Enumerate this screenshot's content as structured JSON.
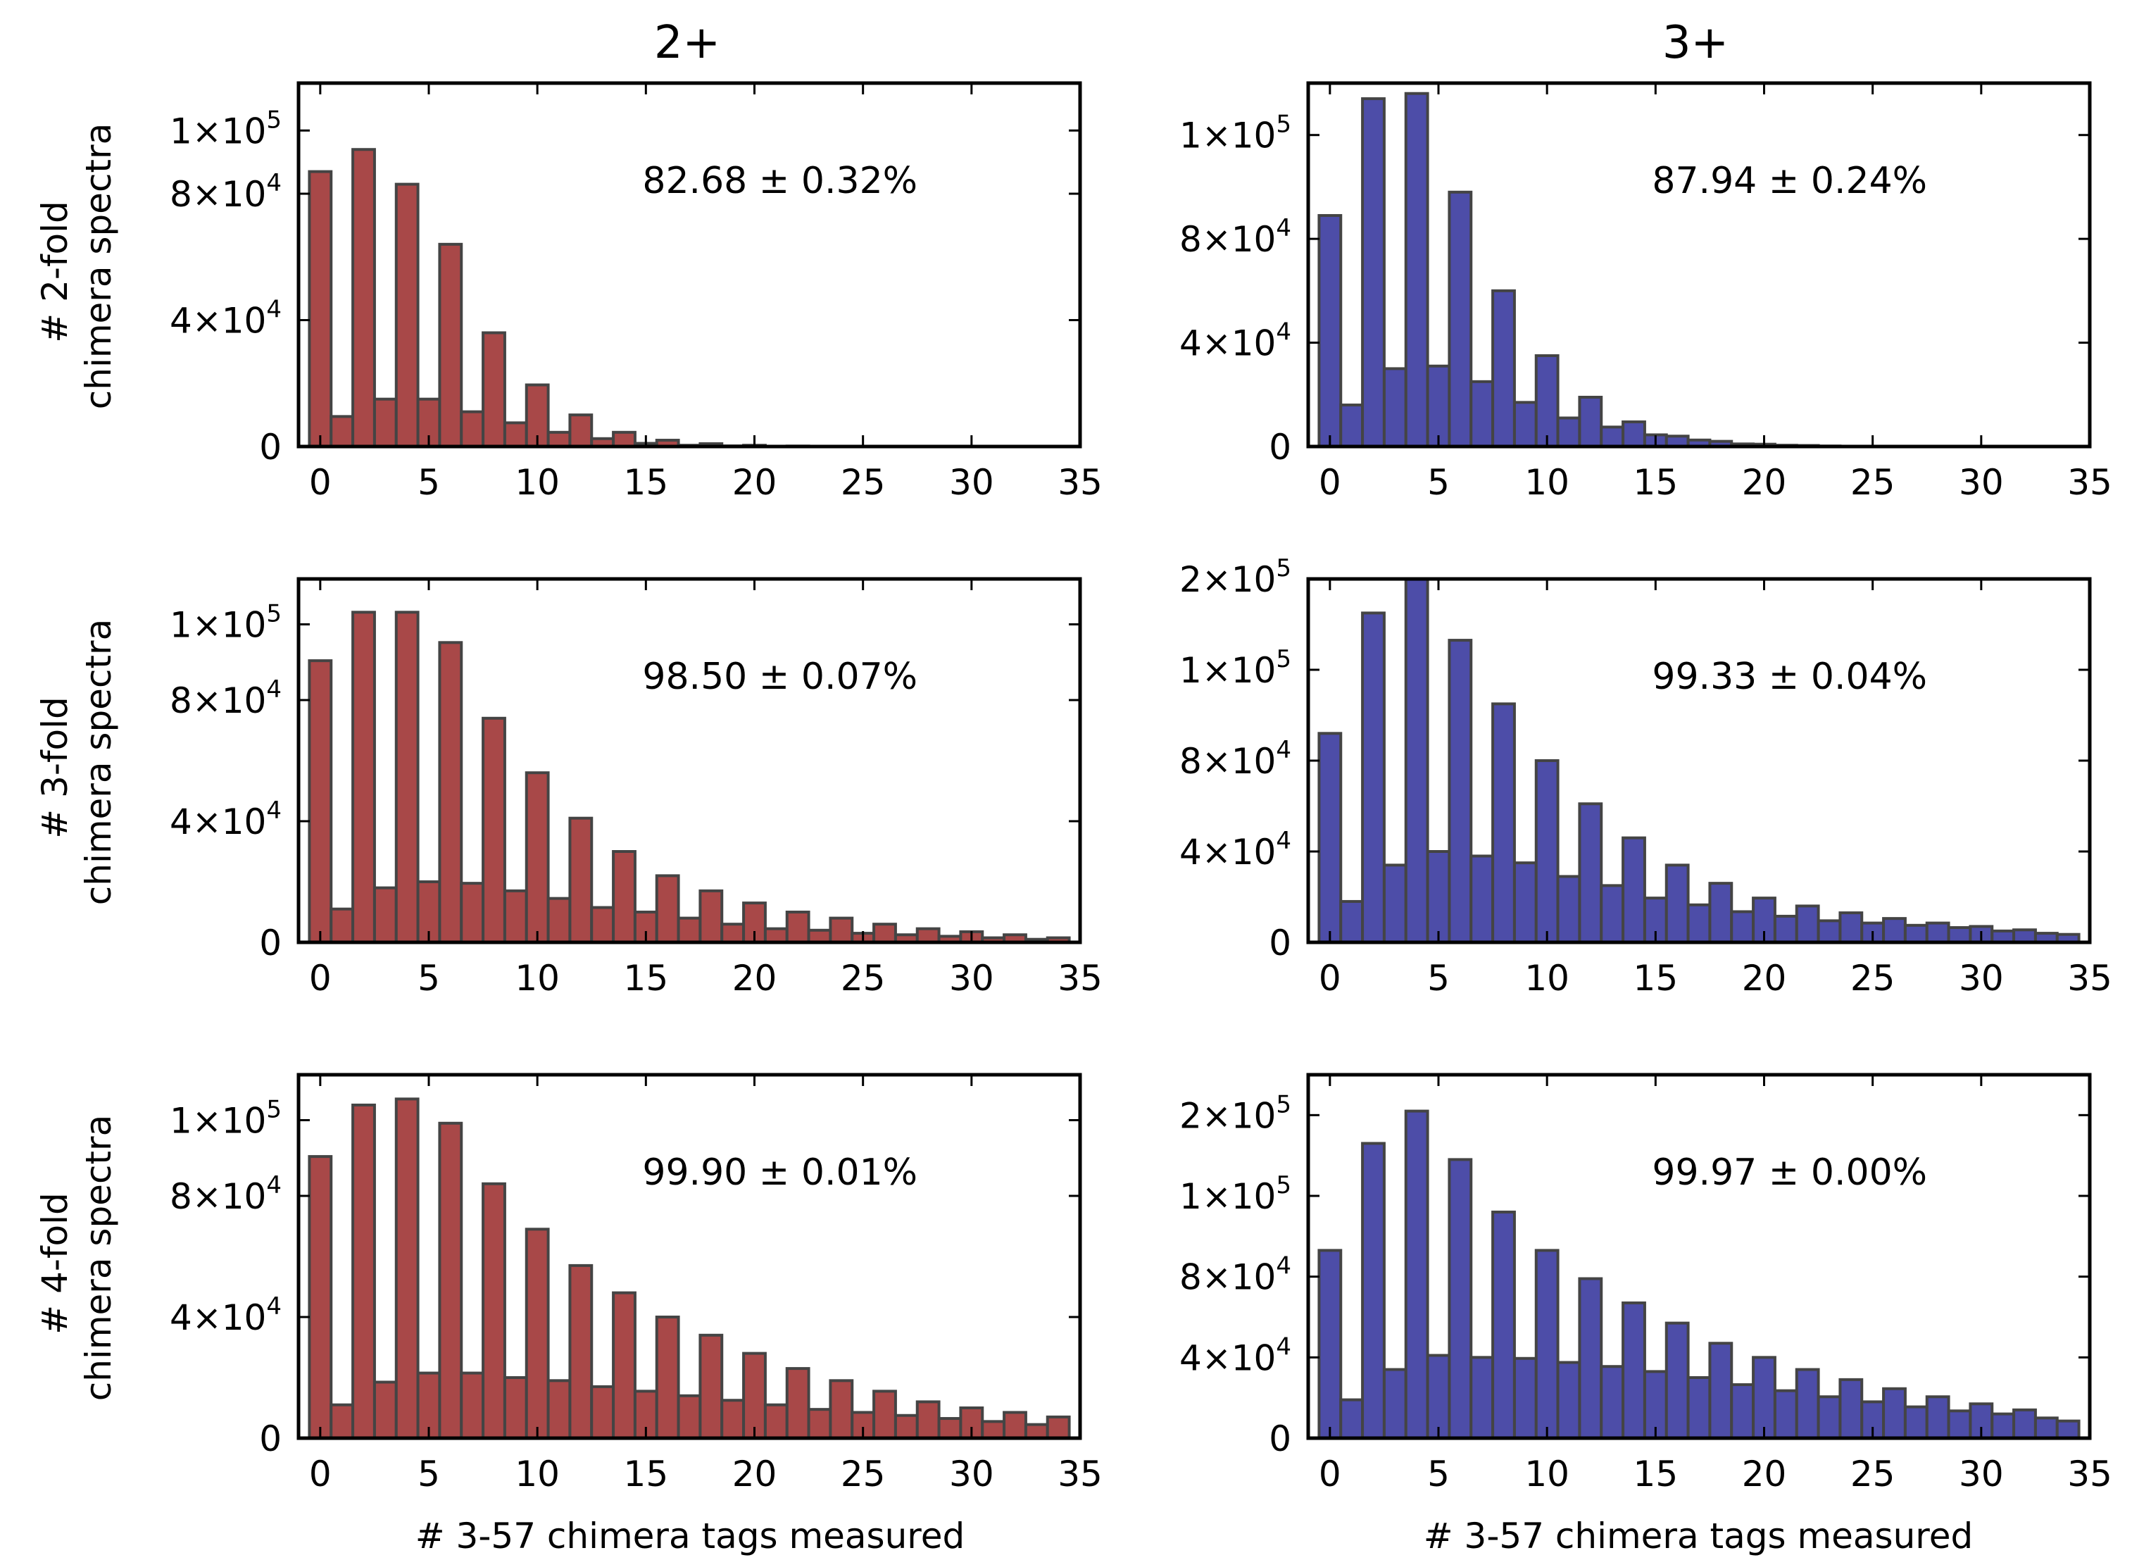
{
  "figure": {
    "column_titles": [
      "2+",
      "3+"
    ],
    "row_ylabels": [
      [
        "# 2-fold",
        "chimera spectra"
      ],
      [
        "# 3-fold",
        "chimera spectra"
      ],
      [
        "# 4-fold",
        "chimera spectra"
      ]
    ],
    "xlabel": "# 3-57 chimera tags measured"
  },
  "colors": {
    "red_series": "#a84848",
    "blue_series": "#4d4da8",
    "bar_edge": "#444444"
  },
  "chart_data": [
    {
      "type": "bar",
      "row": 0,
      "col": 0,
      "charge": "2+",
      "fold": "2-fold",
      "annotation": "82.68 ± 0.32%",
      "xlabel": "",
      "ylabel": "# 2-fold chimera spectra",
      "xlim": [
        -1,
        35
      ],
      "ylim": [
        0,
        115000
      ],
      "xticks": [
        0,
        5,
        10,
        15,
        20,
        25,
        30,
        35
      ],
      "xtick_labels": [
        "0",
        "5",
        "10",
        "15",
        "20",
        "25",
        "30",
        "35"
      ],
      "yticks": [
        0,
        40000,
        80000,
        100000
      ],
      "ytick_labels": [
        {
          "base": "0",
          "exp": ""
        },
        {
          "base": "4×10",
          "exp": "4"
        },
        {
          "base": "8×10",
          "exp": "4"
        },
        {
          "base": "1×10",
          "exp": "5"
        }
      ],
      "bins": [
        0,
        1,
        2,
        3,
        4,
        5,
        6,
        7,
        8,
        9,
        10,
        11,
        12,
        13,
        14,
        15,
        16,
        17,
        18,
        19,
        20,
        21,
        22,
        23,
        24,
        25,
        26,
        27,
        28,
        29,
        30,
        31,
        32,
        33,
        34
      ],
      "values": [
        87000,
        9500,
        94000,
        15000,
        83000,
        15000,
        64000,
        11000,
        36000,
        7500,
        19500,
        4500,
        10000,
        2500,
        4500,
        1000,
        2000,
        400,
        900,
        200,
        400,
        100,
        150,
        50,
        50,
        0,
        0,
        0,
        0,
        0,
        0,
        0,
        0,
        0,
        0
      ]
    },
    {
      "type": "bar",
      "row": 0,
      "col": 1,
      "charge": "3+",
      "fold": "2-fold",
      "annotation": "87.94 ± 0.24%",
      "xlabel": "",
      "ylabel": "",
      "xlim": [
        -1,
        35
      ],
      "ylim": [
        0,
        140000
      ],
      "xticks": [
        0,
        5,
        10,
        15,
        20,
        25,
        30,
        35
      ],
      "xtick_labels": [
        "0",
        "5",
        "10",
        "15",
        "20",
        "25",
        "30",
        "35"
      ],
      "yticks": [
        0,
        40000,
        80000,
        120000
      ],
      "ytick_labels": [
        {
          "base": "0",
          "exp": ""
        },
        {
          "base": "4×10",
          "exp": "4"
        },
        {
          "base": "8×10",
          "exp": "4"
        },
        {
          "base": "1×10",
          "exp": "5"
        }
      ],
      "bins": [
        0,
        1,
        2,
        3,
        4,
        5,
        6,
        7,
        8,
        9,
        10,
        11,
        12,
        13,
        14,
        15,
        16,
        17,
        18,
        19,
        20,
        21,
        22,
        23,
        24,
        25,
        26,
        27,
        28,
        29,
        30,
        31,
        32,
        33,
        34
      ],
      "values": [
        89000,
        16000,
        134000,
        30000,
        136000,
        31000,
        98000,
        25000,
        60000,
        17000,
        35000,
        11000,
        19000,
        7500,
        9500,
        4500,
        4000,
        2500,
        2000,
        1000,
        900,
        500,
        400,
        200,
        100,
        50,
        0,
        0,
        0,
        0,
        0,
        0,
        0,
        0,
        0
      ]
    },
    {
      "type": "bar",
      "row": 1,
      "col": 0,
      "charge": "2+",
      "fold": "3-fold",
      "annotation": "98.50 ± 0.07%",
      "xlabel": "",
      "ylabel": "# 3-fold chimera spectra",
      "xlim": [
        -1,
        35
      ],
      "ylim": [
        0,
        120000
      ],
      "xticks": [
        0,
        5,
        10,
        15,
        20,
        25,
        30,
        35
      ],
      "xtick_labels": [
        "0",
        "5",
        "10",
        "15",
        "20",
        "25",
        "30",
        "35"
      ],
      "yticks": [
        0,
        40000,
        80000,
        105000
      ],
      "ytick_labels": [
        {
          "base": "0",
          "exp": ""
        },
        {
          "base": "4×10",
          "exp": "4"
        },
        {
          "base": "8×10",
          "exp": "4"
        },
        {
          "base": "1×10",
          "exp": "5"
        }
      ],
      "bins": [
        0,
        1,
        2,
        3,
        4,
        5,
        6,
        7,
        8,
        9,
        10,
        11,
        12,
        13,
        14,
        15,
        16,
        17,
        18,
        19,
        20,
        21,
        22,
        23,
        24,
        25,
        26,
        27,
        28,
        29,
        30,
        31,
        32,
        33,
        34
      ],
      "values": [
        93000,
        11000,
        109000,
        18000,
        109000,
        20000,
        99000,
        19500,
        74000,
        17000,
        56000,
        14500,
        41000,
        11500,
        30000,
        10000,
        22000,
        8000,
        17000,
        6000,
        13000,
        4500,
        10000,
        4000,
        8000,
        3000,
        6000,
        2500,
        4500,
        2000,
        3500,
        1500,
        2500,
        1000,
        1500
      ]
    },
    {
      "type": "bar",
      "row": 1,
      "col": 1,
      "charge": "3+",
      "fold": "3-fold",
      "annotation": "99.33 ± 0.04%",
      "xlabel": "",
      "ylabel": "",
      "xlim": [
        -1,
        35
      ],
      "ylim": [
        0,
        160000
      ],
      "xticks": [
        0,
        5,
        10,
        15,
        20,
        25,
        30,
        35
      ],
      "xtick_labels": [
        "0",
        "5",
        "10",
        "15",
        "20",
        "25",
        "30",
        "35"
      ],
      "yticks": [
        0,
        40000,
        80000,
        120000,
        160000
      ],
      "ytick_labels": [
        {
          "base": "0",
          "exp": ""
        },
        {
          "base": "4×10",
          "exp": "4"
        },
        {
          "base": "8×10",
          "exp": "4"
        },
        {
          "base": "1×10",
          "exp": "5"
        },
        {
          "base": "2×10",
          "exp": "5"
        }
      ],
      "bins": [
        0,
        1,
        2,
        3,
        4,
        5,
        6,
        7,
        8,
        9,
        10,
        11,
        12,
        13,
        14,
        15,
        16,
        17,
        18,
        19,
        20,
        21,
        22,
        23,
        24,
        25,
        26,
        27,
        28,
        29,
        30,
        31,
        32,
        33,
        34
      ],
      "values": [
        92000,
        18000,
        145000,
        34000,
        160000,
        40000,
        133000,
        38000,
        105000,
        35000,
        80000,
        29000,
        61000,
        25000,
        46000,
        19500,
        34000,
        16500,
        26000,
        13500,
        19500,
        11500,
        16000,
        9500,
        13000,
        8500,
        10500,
        7500,
        8500,
        6500,
        7000,
        5000,
        5500,
        4000,
        3500
      ]
    },
    {
      "type": "bar",
      "row": 2,
      "col": 0,
      "charge": "2+",
      "fold": "4-fold",
      "annotation": "99.90 ± 0.01%",
      "xlabel": "# 3-57 chimera tags measured",
      "ylabel": "# 4-fold chimera spectra",
      "xlim": [
        -1,
        35
      ],
      "ylim": [
        0,
        120000
      ],
      "xticks": [
        0,
        5,
        10,
        15,
        20,
        25,
        30,
        35
      ],
      "xtick_labels": [
        "0",
        "5",
        "10",
        "15",
        "20",
        "25",
        "30",
        "35"
      ],
      "yticks": [
        0,
        40000,
        80000,
        105000
      ],
      "ytick_labels": [
        {
          "base": "0",
          "exp": ""
        },
        {
          "base": "4×10",
          "exp": "4"
        },
        {
          "base": "8×10",
          "exp": "4"
        },
        {
          "base": "1×10",
          "exp": "5"
        }
      ],
      "bins": [
        0,
        1,
        2,
        3,
        4,
        5,
        6,
        7,
        8,
        9,
        10,
        11,
        12,
        13,
        14,
        15,
        16,
        17,
        18,
        19,
        20,
        21,
        22,
        23,
        24,
        25,
        26,
        27,
        28,
        29,
        30,
        31,
        32,
        33,
        34
      ],
      "values": [
        93000,
        11000,
        110000,
        18500,
        112000,
        21500,
        104000,
        21500,
        84000,
        20000,
        69000,
        19000,
        57000,
        17000,
        48000,
        15500,
        40000,
        14000,
        34000,
        12500,
        28000,
        11000,
        23000,
        9500,
        19000,
        8500,
        15500,
        7500,
        12000,
        6500,
        10000,
        5500,
        8500,
        4500,
        7000
      ]
    },
    {
      "type": "bar",
      "row": 2,
      "col": 1,
      "charge": "3+",
      "fold": "4-fold",
      "annotation": "99.97 ± 0.00%",
      "xlabel": "# 3-57 chimera tags measured",
      "ylabel": "",
      "xlim": [
        -1,
        35
      ],
      "ylim": [
        0,
        180000
      ],
      "xticks": [
        0,
        5,
        10,
        15,
        20,
        25,
        30,
        35
      ],
      "xtick_labels": [
        "0",
        "5",
        "10",
        "15",
        "20",
        "25",
        "30",
        "35"
      ],
      "yticks": [
        0,
        40000,
        80000,
        120000,
        160000
      ],
      "ytick_labels": [
        {
          "base": "0",
          "exp": ""
        },
        {
          "base": "4×10",
          "exp": "4"
        },
        {
          "base": "8×10",
          "exp": "4"
        },
        {
          "base": "1×10",
          "exp": "5"
        },
        {
          "base": "2×10",
          "exp": "5"
        }
      ],
      "bins": [
        0,
        1,
        2,
        3,
        4,
        5,
        6,
        7,
        8,
        9,
        10,
        11,
        12,
        13,
        14,
        15,
        16,
        17,
        18,
        19,
        20,
        21,
        22,
        23,
        24,
        25,
        26,
        27,
        28,
        29,
        30,
        31,
        32,
        33,
        34
      ],
      "values": [
        93000,
        19000,
        146000,
        34000,
        162000,
        41000,
        138000,
        40000,
        112000,
        39500,
        93000,
        37500,
        79000,
        35500,
        67000,
        33000,
        57000,
        30000,
        47000,
        26500,
        40000,
        23500,
        34000,
        20500,
        29000,
        18000,
        24500,
        15500,
        20500,
        13500,
        17000,
        12000,
        14000,
        10000,
        8500
      ]
    }
  ]
}
